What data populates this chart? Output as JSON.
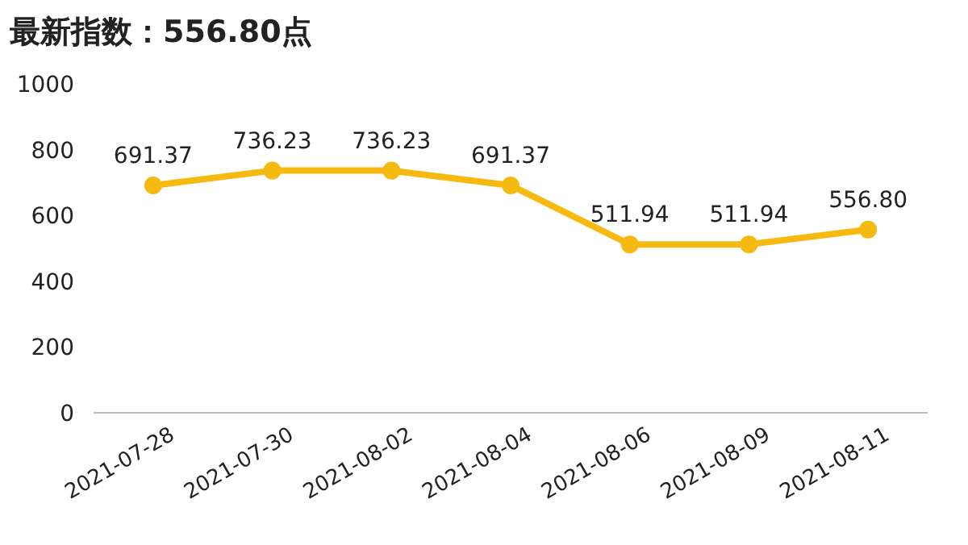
{
  "chart_data": {
    "type": "line",
    "title": "最新指数：556.80点",
    "categories": [
      "2021-07-28",
      "2021-07-30",
      "2021-08-02",
      "2021-08-04",
      "2021-08-06",
      "2021-08-09",
      "2021-08-11"
    ],
    "series": [
      {
        "color": "#f5b90f",
        "values": [
          691.37,
          736.23,
          736.23,
          691.37,
          511.94,
          511.94,
          556.8
        ],
        "value_labels": [
          "691.37",
          "736.23",
          "736.23",
          "691.37",
          "511.94",
          "511.94",
          "556.80"
        ]
      }
    ],
    "ylim": [
      0,
      1000
    ],
    "yticks": [
      0,
      200,
      400,
      600,
      800,
      1000
    ],
    "marker": "circle",
    "grid": false
  }
}
